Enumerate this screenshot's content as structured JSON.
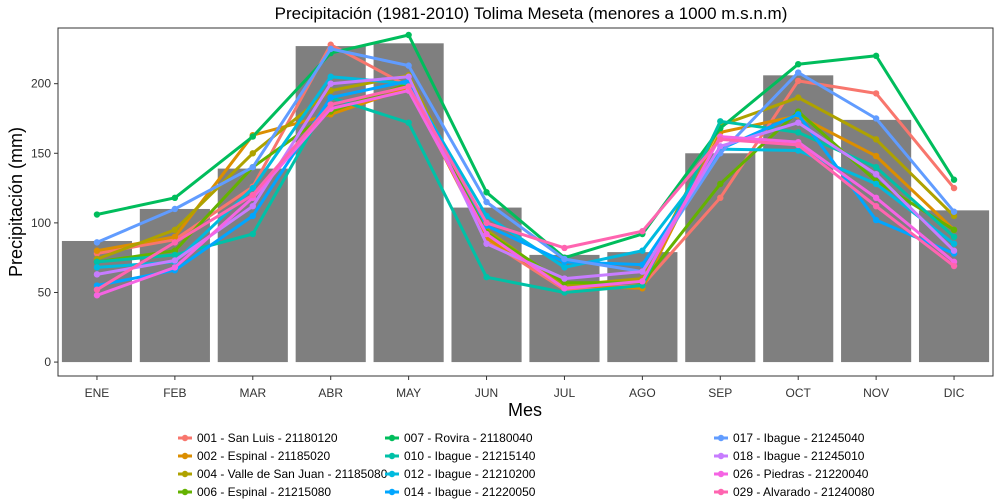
{
  "chart_data": {
    "type": "bar",
    "title": "Precipitación (1981-2010) Tolima Meseta (menores a 1000 m.s.n.m)",
    "xlabel": "Mes",
    "ylabel": "Precipitación (mm)",
    "ylim": [
      -10,
      240
    ],
    "yticks": [
      0,
      50,
      100,
      150,
      200
    ],
    "grid": false,
    "legend_position": "bottom",
    "categories": [
      "ENE",
      "FEB",
      "MAR",
      "ABR",
      "MAY",
      "JUN",
      "JUL",
      "AGO",
      "SEP",
      "OCT",
      "NOV",
      "DIC"
    ],
    "bar_values": [
      87,
      110,
      139,
      227,
      229,
      111,
      77,
      79,
      150,
      206,
      174,
      109
    ],
    "bar_color": "#7f7f7f",
    "series": [
      {
        "name": "001 - San Luis - 21180120",
        "color": "#F8766D",
        "values": [
          78,
          88,
          126,
          228,
          198,
          88,
          52,
          55,
          118,
          202,
          193,
          125
        ]
      },
      {
        "name": "002 - Espinal - 21185020",
        "color": "#DB8E00",
        "values": [
          80,
          90,
          163,
          178,
          197,
          89,
          55,
          53,
          165,
          177,
          148,
          95
        ]
      },
      {
        "name": "004 - Valle de San Juan - 21185080",
        "color": "#AEA200",
        "values": [
          74,
          95,
          150,
          195,
          206,
          95,
          55,
          60,
          170,
          190,
          160,
          105
        ]
      },
      {
        "name": "006 - Espinal - 21215080",
        "color": "#64B200",
        "values": [
          72,
          80,
          140,
          180,
          200,
          93,
          57,
          57,
          128,
          180,
          130,
          95
        ]
      },
      {
        "name": "007 - Rovira - 21180040",
        "color": "#00BD5C",
        "values": [
          106,
          118,
          162,
          222,
          235,
          122,
          75,
          92,
          168,
          214,
          220,
          131
        ]
      },
      {
        "name": "010 - Ibague - 21215140",
        "color": "#00C1A7",
        "values": [
          72,
          77,
          92,
          190,
          172,
          61,
          50,
          55,
          173,
          165,
          140,
          90
        ]
      },
      {
        "name": "012 - Ibague - 21210200",
        "color": "#00BADE",
        "values": [
          68,
          72,
          125,
          205,
          200,
          105,
          68,
          80,
          153,
          152,
          128,
          85
        ]
      },
      {
        "name": "014 - Ibague - 21220050",
        "color": "#00A6FF",
        "values": [
          55,
          66,
          105,
          190,
          202,
          98,
          72,
          70,
          153,
          178,
          102,
          78
        ]
      },
      {
        "name": "017 - Ibague - 21245040",
        "color": "#619CFF",
        "values": [
          86,
          110,
          140,
          225,
          213,
          115,
          74,
          65,
          150,
          208,
          175,
          108
        ]
      },
      {
        "name": "018 - Ibague - 21245010",
        "color": "#C77CFF",
        "values": [
          63,
          73,
          112,
          200,
          205,
          85,
          60,
          65,
          155,
          172,
          135,
          80
        ]
      },
      {
        "name": "026 - Piedras - 21220040",
        "color": "#F564E3",
        "values": [
          48,
          68,
          118,
          182,
          195,
          92,
          53,
          58,
          162,
          158,
          118,
          72
        ]
      },
      {
        "name": "029 - Alvarado - 21240080",
        "color": "#FF64B0",
        "values": [
          52,
          86,
          120,
          185,
          198,
          100,
          82,
          94,
          160,
          156,
          112,
          69
        ]
      }
    ]
  }
}
